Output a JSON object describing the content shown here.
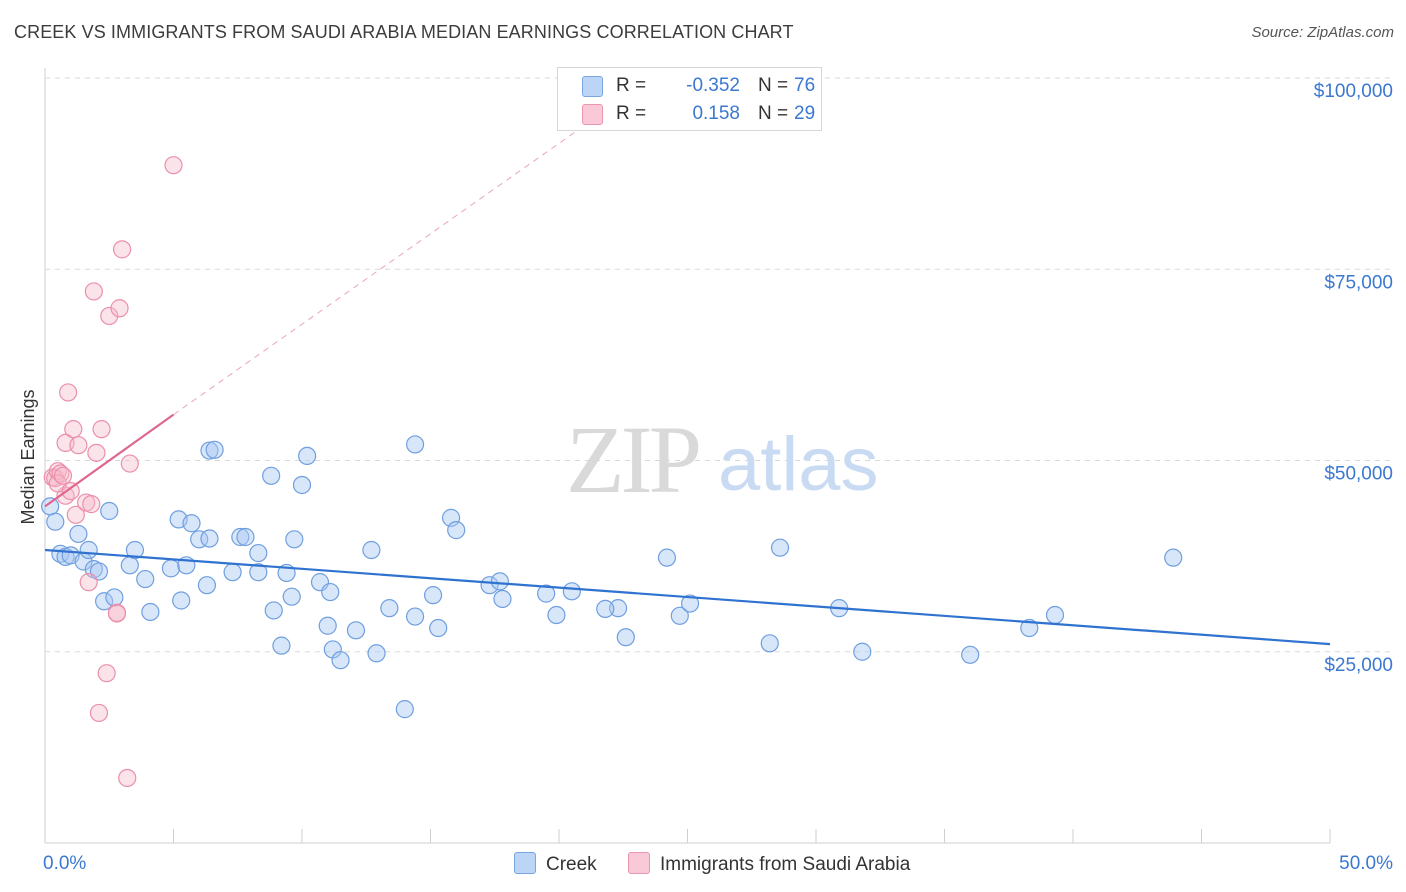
{
  "title": "CREEK VS IMMIGRANTS FROM SAUDI ARABIA MEDIAN EARNINGS CORRELATION CHART",
  "source": "Source: ZipAtlas.com",
  "watermark": {
    "zip": "ZIP",
    "atlas": "atlas"
  },
  "legend": {
    "rows": [
      {
        "r_label": "R =",
        "r_value": "-0.352",
        "n_label": "N =",
        "n_value": "76",
        "color": "#a9c8f1"
      },
      {
        "r_label": "R =",
        "r_value": "0.158",
        "n_label": "N =",
        "n_value": "29",
        "color": "#f5b8cb"
      }
    ]
  },
  "bottom_legend": {
    "creek": "Creek",
    "saudi": "Immigrants from Saudi Arabia"
  },
  "colors": {
    "creek_fill": "#a9c8f1",
    "creek_stroke": "#6f9fe0",
    "creek_line": "#2f72d0",
    "saudi_fill": "#f5b8cb",
    "saudi_stroke": "#ec8faa",
    "saudi_line": "#e0668f",
    "grid": "#d9d9d9",
    "tick_text": "#3b78d0"
  },
  "chart_data": {
    "type": "scatter",
    "title": "CREEK VS IMMIGRANTS FROM SAUDI ARABIA MEDIAN EARNINGS CORRELATION CHART",
    "xlabel": "",
    "ylabel": "Median Earnings",
    "xlim": [
      0,
      50
    ],
    "ylim": [
      0,
      100000
    ],
    "x_tick_labels": [
      "0.0%",
      "50.0%"
    ],
    "y_ticks": [
      25000,
      50000,
      75000,
      100000
    ],
    "y_tick_labels": [
      "$25,000",
      "$50,000",
      "$75,000",
      "$100,000"
    ],
    "grid": true,
    "series": [
      {
        "name": "Creek",
        "r": -0.352,
        "n": 76,
        "trend": {
          "x0": 0,
          "y0": 38300,
          "x1": 50,
          "y1": 26000
        },
        "points": [
          [
            0.2,
            44000
          ],
          [
            0.4,
            42000
          ],
          [
            0.6,
            37800
          ],
          [
            0.8,
            37400
          ],
          [
            1.0,
            37600
          ],
          [
            1.3,
            40400
          ],
          [
            1.5,
            36800
          ],
          [
            1.7,
            38300
          ],
          [
            1.9,
            35800
          ],
          [
            2.1,
            35500
          ],
          [
            2.3,
            31600
          ],
          [
            2.5,
            43400
          ],
          [
            2.7,
            32100
          ],
          [
            3.3,
            36300
          ],
          [
            3.5,
            38300
          ],
          [
            3.9,
            34500
          ],
          [
            4.1,
            30200
          ],
          [
            4.9,
            35900
          ],
          [
            5.3,
            31700
          ],
          [
            6.3,
            33700
          ],
          [
            5.2,
            42300
          ],
          [
            5.5,
            36300
          ],
          [
            5.7,
            41800
          ],
          [
            6.0,
            39700
          ],
          [
            6.4,
            51300
          ],
          [
            6.6,
            51400
          ],
          [
            6.4,
            39800
          ],
          [
            7.6,
            40000
          ],
          [
            7.3,
            35400
          ],
          [
            7.8,
            40000
          ],
          [
            8.3,
            37900
          ],
          [
            8.3,
            35400
          ],
          [
            8.9,
            30400
          ],
          [
            8.8,
            48000
          ],
          [
            9.2,
            25800
          ],
          [
            9.4,
            35300
          ],
          [
            9.6,
            32200
          ],
          [
            9.7,
            39700
          ],
          [
            10.0,
            46800
          ],
          [
            10.2,
            50600
          ],
          [
            10.7,
            34100
          ],
          [
            11.0,
            28400
          ],
          [
            11.1,
            32800
          ],
          [
            11.2,
            25300
          ],
          [
            11.5,
            23900
          ],
          [
            12.1,
            27800
          ],
          [
            12.7,
            38300
          ],
          [
            12.9,
            24800
          ],
          [
            13.4,
            30700
          ],
          [
            14.0,
            17500
          ],
          [
            14.4,
            52100
          ],
          [
            14.4,
            29600
          ],
          [
            15.1,
            32400
          ],
          [
            15.3,
            28100
          ],
          [
            15.8,
            42500
          ],
          [
            16.0,
            40900
          ],
          [
            17.3,
            33700
          ],
          [
            17.7,
            34200
          ],
          [
            17.8,
            31900
          ],
          [
            19.5,
            32600
          ],
          [
            19.9,
            29800
          ],
          [
            20.5,
            32900
          ],
          [
            22.3,
            30700
          ],
          [
            22.6,
            26900
          ],
          [
            24.2,
            37300
          ],
          [
            24.7,
            29700
          ],
          [
            25.1,
            31300
          ],
          [
            28.6,
            38600
          ],
          [
            30.9,
            30700
          ],
          [
            31.8,
            25000
          ],
          [
            38.3,
            28100
          ],
          [
            39.3,
            29800
          ],
          [
            43.9,
            37300
          ],
          [
            21.8,
            30600
          ],
          [
            28.2,
            26100
          ],
          [
            36.0,
            24600
          ]
        ]
      },
      {
        "name": "Immigrants from Saudi Arabia",
        "r": 0.158,
        "n": 29,
        "trend": {
          "x0": 0,
          "y0": 44000,
          "x1": 5,
          "y1": 56000
        },
        "trend_extension": {
          "x0": 5,
          "y0": 56000,
          "x1": 21.5,
          "y1": 95000
        },
        "points": [
          [
            0.3,
            47800
          ],
          [
            0.4,
            47700
          ],
          [
            0.5,
            48600
          ],
          [
            0.6,
            48300
          ],
          [
            0.8,
            45400
          ],
          [
            0.8,
            52300
          ],
          [
            0.9,
            58900
          ],
          [
            1.1,
            54100
          ],
          [
            1.2,
            42900
          ],
          [
            1.3,
            52000
          ],
          [
            1.6,
            44500
          ],
          [
            1.7,
            34100
          ],
          [
            1.8,
            44300
          ],
          [
            1.9,
            72100
          ],
          [
            2.0,
            51000
          ],
          [
            2.1,
            17000
          ],
          [
            2.2,
            54100
          ],
          [
            2.4,
            22200
          ],
          [
            2.5,
            68900
          ],
          [
            2.8,
            30100
          ],
          [
            2.8,
            30000
          ],
          [
            2.9,
            69900
          ],
          [
            3.0,
            77600
          ],
          [
            3.2,
            8500
          ],
          [
            3.3,
            49600
          ],
          [
            5.0,
            88600
          ],
          [
            0.5,
            47000
          ],
          [
            1.0,
            46000
          ],
          [
            0.7,
            48000
          ]
        ]
      }
    ]
  }
}
